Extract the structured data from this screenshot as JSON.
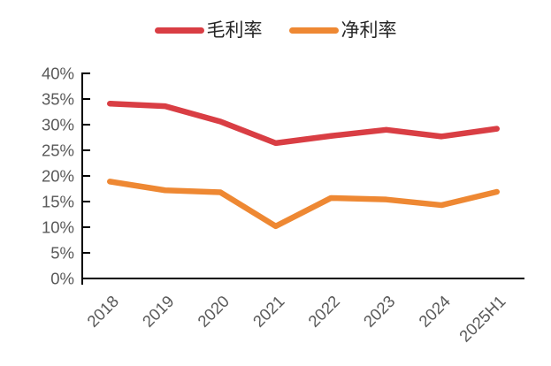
{
  "chart_data": {
    "type": "line",
    "title": "",
    "xlabel": "",
    "ylabel": "",
    "categories": [
      "2018",
      "2019",
      "2020",
      "2021",
      "2022",
      "2023",
      "2024",
      "2025H1"
    ],
    "series": [
      {
        "name": "毛利率",
        "color": "#D93E44",
        "values": [
          34.1,
          33.6,
          30.6,
          26.4,
          27.8,
          29.0,
          27.7,
          29.2
        ]
      },
      {
        "name": "净利率",
        "color": "#EE8833",
        "values": [
          18.9,
          17.2,
          16.8,
          10.2,
          15.7,
          15.4,
          14.3,
          16.9
        ]
      }
    ],
    "ylim": [
      0,
      40
    ],
    "y_tick_step": 5,
    "y_tick_labels": [
      "0%",
      "5%",
      "10%",
      "15%",
      "20%",
      "25%",
      "30%",
      "35%",
      "40%"
    ],
    "grid": false,
    "legend_position": "top",
    "axis_color": "#000000",
    "tick_label_color": "#595959",
    "x_labels_rotation_deg": -45
  }
}
